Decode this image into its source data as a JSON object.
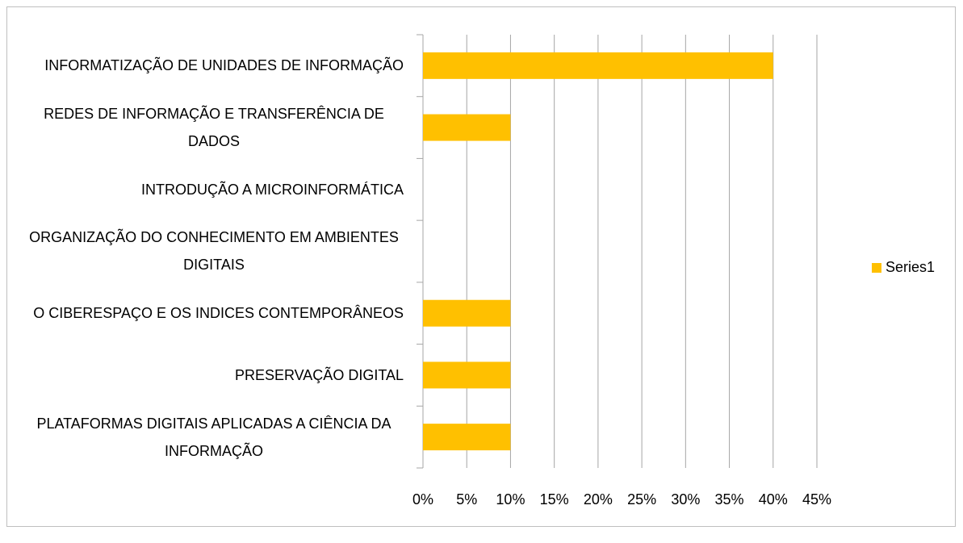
{
  "chart_data": {
    "type": "bar",
    "orientation": "horizontal",
    "categories": [
      "INFORMATIZAÇÃO DE UNIDADES DE INFORMAÇÃO",
      "REDES DE INFORMAÇÃO E TRANSFERÊNCIA DE DADOS",
      "INTRODUÇÃO A MICROINFORMÁTICA",
      "ORGANIZAÇÃO DO CONHECIMENTO EM AMBIENTES DIGITAIS",
      "O CIBERESPAÇO  E OS INDICES CONTEMPORÂNEOS",
      "PRESERVAÇÃO DIGITAL",
      "PLATAFORMAS DIGITAIS APLICADAS A CIÊNCIA DA INFORMAÇÃO"
    ],
    "series": [
      {
        "name": "Series1",
        "color": "#FFC000",
        "values": [
          40,
          10,
          0,
          0,
          10,
          10,
          10
        ]
      }
    ],
    "xlim": [
      0,
      45
    ],
    "xticks": [
      {
        "value": 0,
        "label": "0%"
      },
      {
        "value": 5,
        "label": "5%"
      },
      {
        "value": 10,
        "label": "10%"
      },
      {
        "value": 15,
        "label": "15%"
      },
      {
        "value": 20,
        "label": "20%"
      },
      {
        "value": 25,
        "label": "25%"
      },
      {
        "value": 30,
        "label": "30%"
      },
      {
        "value": 35,
        "label": "35%"
      },
      {
        "value": 40,
        "label": "40%"
      },
      {
        "value": 45,
        "label": "45%"
      }
    ],
    "grid": true,
    "legend": "right"
  }
}
